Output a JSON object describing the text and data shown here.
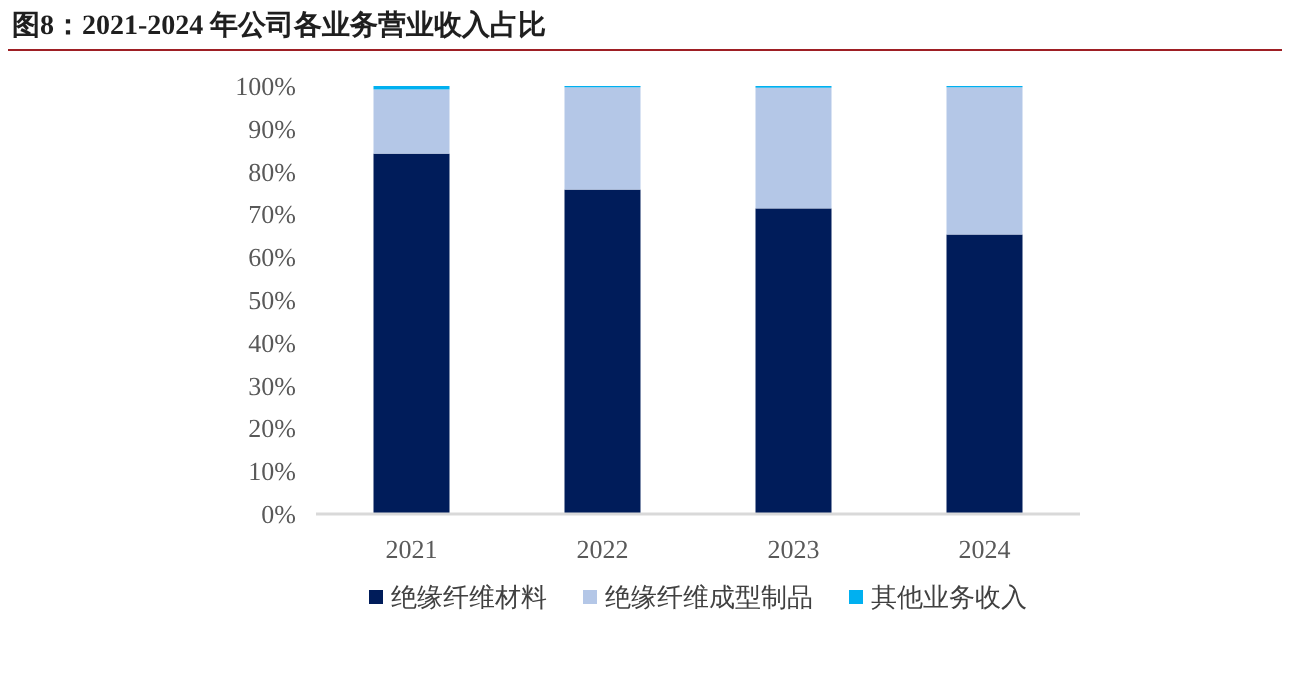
{
  "chart_data": {
    "type": "bar",
    "stacked": true,
    "title": "图8：2021-2024 年公司各业务营业收入占比",
    "categories": [
      "2021",
      "2022",
      "2023",
      "2024"
    ],
    "series": [
      {
        "name": "绝缘纤维材料",
        "color": "#001c5a",
        "values": [
          84.2,
          75.8,
          71.4,
          65.3
        ]
      },
      {
        "name": "绝缘纤维成型制品",
        "color": "#b4c7e7",
        "values": [
          15.0,
          23.9,
          28.2,
          34.4
        ]
      },
      {
        "name": "其他业务收入",
        "color": "#00b0f0",
        "values": [
          0.8,
          0.3,
          0.4,
          0.3
        ]
      }
    ],
    "ylim": [
      0,
      100
    ],
    "yticks": [
      {
        "value": 0,
        "label": "0%"
      },
      {
        "value": 10,
        "label": "10%"
      },
      {
        "value": 20,
        "label": "20%"
      },
      {
        "value": 30,
        "label": "30%"
      },
      {
        "value": 40,
        "label": "40%"
      },
      {
        "value": 50,
        "label": "50%"
      },
      {
        "value": 60,
        "label": "60%"
      },
      {
        "value": 70,
        "label": "70%"
      },
      {
        "value": 80,
        "label": "80%"
      },
      {
        "value": 90,
        "label": "90%"
      },
      {
        "value": 100,
        "label": "100%"
      }
    ],
    "grid": false,
    "legend": "bottom"
  }
}
